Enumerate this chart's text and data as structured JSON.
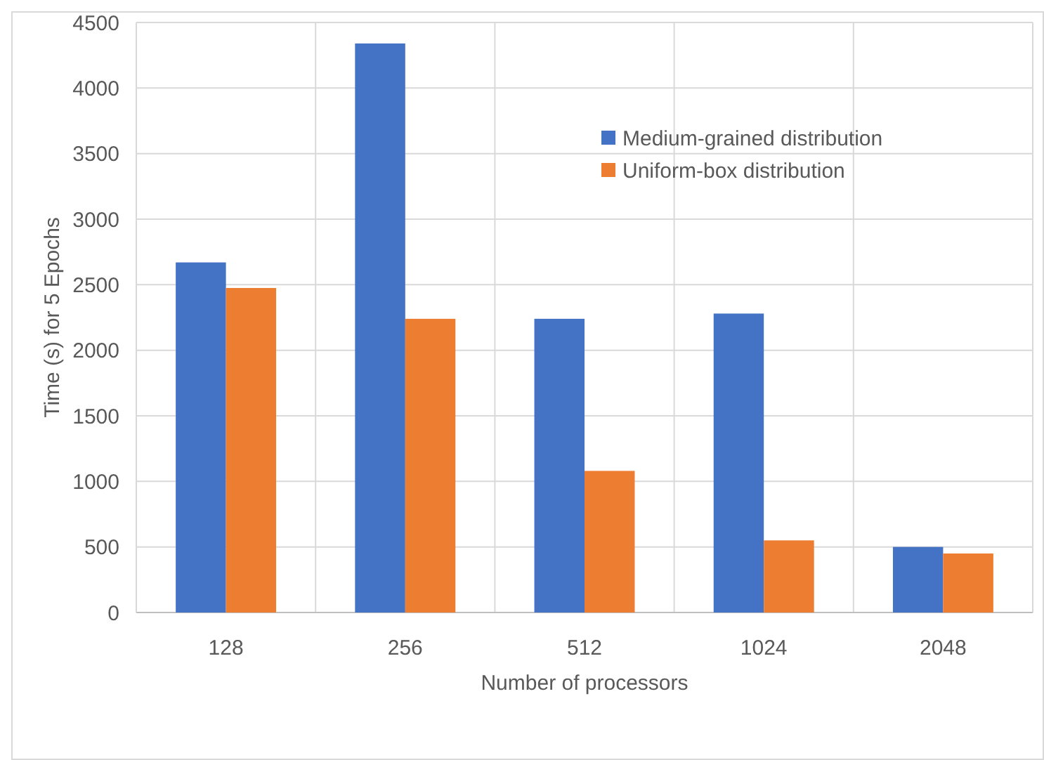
{
  "chart_data": {
    "type": "bar",
    "xlabel": "Number of processors",
    "ylabel": "Time (s) for 5 Epochs",
    "categories": [
      "128",
      "256",
      "512",
      "1024",
      "2048"
    ],
    "series": [
      {
        "name": "Medium-grained distribution",
        "color": "#4472c4",
        "values": [
          2670,
          4340,
          2240,
          2280,
          500
        ]
      },
      {
        "name": "Uniform-box distribution",
        "color": "#ed7d31",
        "values": [
          2475,
          2240,
          1080,
          550,
          450
        ]
      }
    ],
    "ylim": [
      0,
      4500
    ],
    "yticks": [
      0,
      500,
      1000,
      1500,
      2000,
      2500,
      3000,
      3500,
      4000,
      4500
    ],
    "grid": true,
    "legend": "top right"
  }
}
